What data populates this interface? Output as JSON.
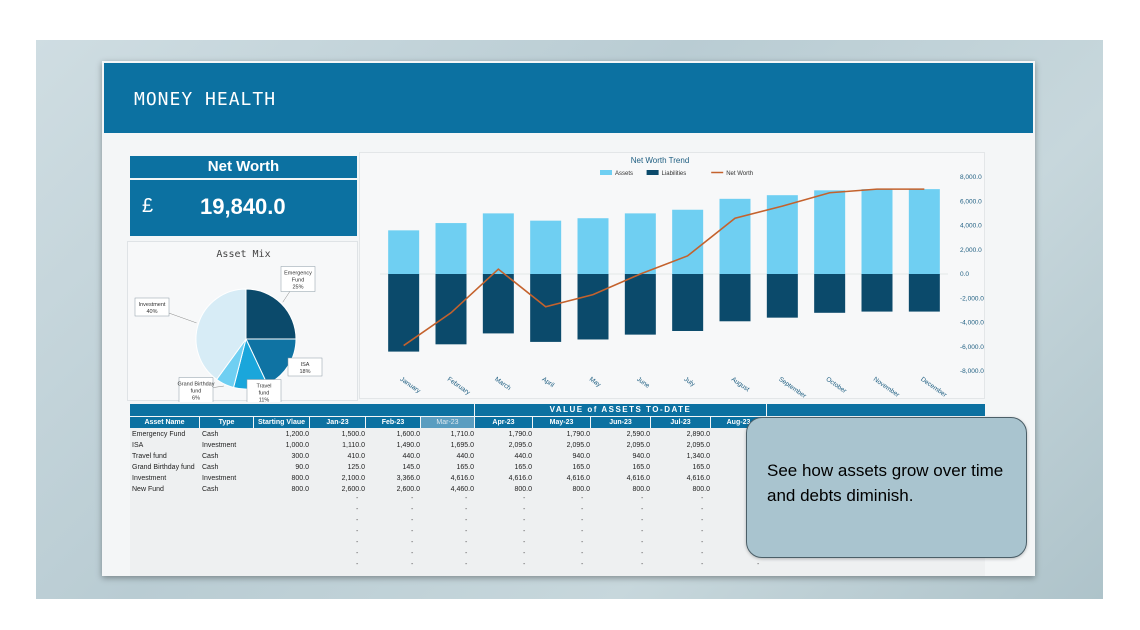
{
  "banner": {
    "title": "MONEY HEALTH"
  },
  "net_worth": {
    "label": "Net Worth",
    "currency": "£",
    "value": "19,840.0"
  },
  "asset_mix": {
    "title": "Asset Mix",
    "slices": [
      {
        "label": "Emergency Fund",
        "pct_label": "25%",
        "value": 25,
        "color": "#0b4a6b"
      },
      {
        "label": "ISA",
        "pct_label": "18%",
        "value": 18,
        "color": "#0f73a3"
      },
      {
        "label": "Travel fund",
        "pct_label": "11%",
        "value": 11,
        "color": "#1aa6db"
      },
      {
        "label": "Grand Birthday fund",
        "pct_label": "6%",
        "value": 6,
        "color": "#6fcff2"
      },
      {
        "label": "Investment",
        "pct_label": "40%",
        "value": 40,
        "color": "#d7ecf6"
      }
    ]
  },
  "chart_data": {
    "type": "bar",
    "title": "Net Worth Trend",
    "categories": [
      "January",
      "February",
      "March",
      "April",
      "May",
      "June",
      "July",
      "August",
      "September",
      "October",
      "November",
      "December"
    ],
    "series": [
      {
        "name": "Assets",
        "color": "#6fcff2",
        "values": [
          3600,
          4200,
          5000,
          4400,
          4600,
          5000,
          5300,
          6200,
          6500,
          6900,
          7000,
          7000
        ]
      },
      {
        "name": "Liabilities",
        "color": "#0b4a6b",
        "values": [
          -6400,
          -5800,
          -4900,
          -5600,
          -5400,
          -5000,
          -4700,
          -3900,
          -3600,
          -3200,
          -3100,
          -3100
        ]
      },
      {
        "name": "Net Worth",
        "color": "#c4622d",
        "values": [
          -5900,
          -3200,
          400,
          -2700,
          -1700,
          0,
          1500,
          4600,
          5600,
          6700,
          7000,
          7000
        ]
      }
    ],
    "ylim": [
      -8000,
      8000
    ],
    "y_ticks": [
      "8,000.0",
      "6,000.0",
      "4,000.0",
      "2,000.0",
      "0.0",
      "-2,000.0",
      "-4,000.0",
      "-6,000.0",
      "-8,000.0"
    ],
    "legend": "top-center"
  },
  "table": {
    "section_header": "VALUE of ASSETS TO-DATE",
    "columns": [
      "Asset Name",
      "Type",
      "Starting Vlaue",
      "Jan-23",
      "Feb-23",
      "Mar-23",
      "Apr-23",
      "May-23",
      "Jun-23",
      "Jul-23",
      "Aug-23"
    ],
    "rows": [
      [
        "Emergency Fund",
        "Cash",
        "1,200.0",
        "1,500.0",
        "1,600.0",
        "1,710.0",
        "1,790.0",
        "1,790.0",
        "2,590.0",
        "2,890.0",
        "2,8"
      ],
      [
        "ISA",
        "Investment",
        "1,000.0",
        "1,110.0",
        "1,490.0",
        "1,695.0",
        "2,095.0",
        "2,095.0",
        "2,095.0",
        "2,095.0",
        "2,0"
      ],
      [
        "Travel fund",
        "Cash",
        "300.0",
        "410.0",
        "440.0",
        "440.0",
        "440.0",
        "940.0",
        "940.0",
        "1,340.0",
        "1,3"
      ],
      [
        "Grand Birthday fund",
        "Cash",
        "90.0",
        "125.0",
        "145.0",
        "165.0",
        "165.0",
        "165.0",
        "165.0",
        "165.0",
        "6"
      ],
      [
        "Investment",
        "Investment",
        "800.0",
        "2,100.0",
        "3,366.0",
        "4,616.0",
        "4,616.0",
        "4,616.0",
        "4,616.0",
        "4,616.0",
        "4,6"
      ],
      [
        "New Fund",
        "Cash",
        "800.0",
        "2,600.0",
        "2,600.0",
        "4,460.0",
        "800.0",
        "800.0",
        "800.0",
        "800.0",
        "8"
      ]
    ],
    "empty_marker": "-"
  },
  "callout": {
    "text": "See how assets grow over time and debts diminish."
  }
}
